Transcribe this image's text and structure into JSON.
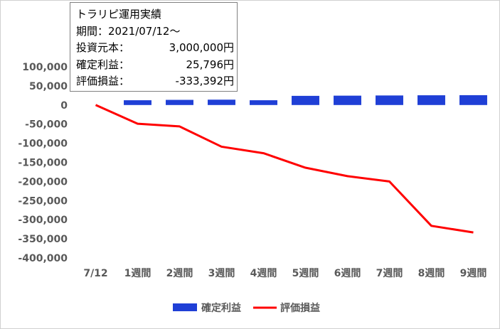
{
  "info_box": {
    "title": "トラリピ運用実績",
    "period_label": "期間：",
    "period_value": "2021/07/12～",
    "principal_label": "投資元本：",
    "principal_value": "3,000,000円",
    "realized_label": "確定利益：",
    "realized_value": "25,796円",
    "unrealized_label": "評価損益：",
    "unrealized_value": "-333,392円"
  },
  "colors": {
    "bar": "#1f3fd6",
    "line": "#ff0000",
    "text": "#595959"
  },
  "chart_data": {
    "type": "bar+line",
    "categories": [
      "7/12",
      "1週間",
      "2週間",
      "3週間",
      "4週間",
      "5週間",
      "6週間",
      "7週間",
      "8週間",
      "9週間"
    ],
    "series": [
      {
        "name": "確定利益",
        "type": "bar",
        "values": [
          0,
          12500,
          13500,
          14000,
          12500,
          24000,
          24500,
          25000,
          25500,
          25796
        ]
      },
      {
        "name": "評価損益",
        "type": "line",
        "values": [
          0,
          -49000,
          -56000,
          -109000,
          -126000,
          -164000,
          -186000,
          -200000,
          -316000,
          -333392
        ]
      }
    ],
    "yticks": [
      100000,
      50000,
      0,
      -50000,
      -100000,
      -150000,
      -200000,
      -250000,
      -300000,
      -350000,
      -400000
    ],
    "ytick_labels": [
      "100,000",
      "50,000",
      "0",
      "-50,000",
      "-100,000",
      "-150,000",
      "-200,000",
      "-250,000",
      "-300,000",
      "-350,000",
      "-400,000"
    ],
    "ylim": [
      -400000,
      100000
    ],
    "grid": false,
    "legend_position": "bottom"
  }
}
